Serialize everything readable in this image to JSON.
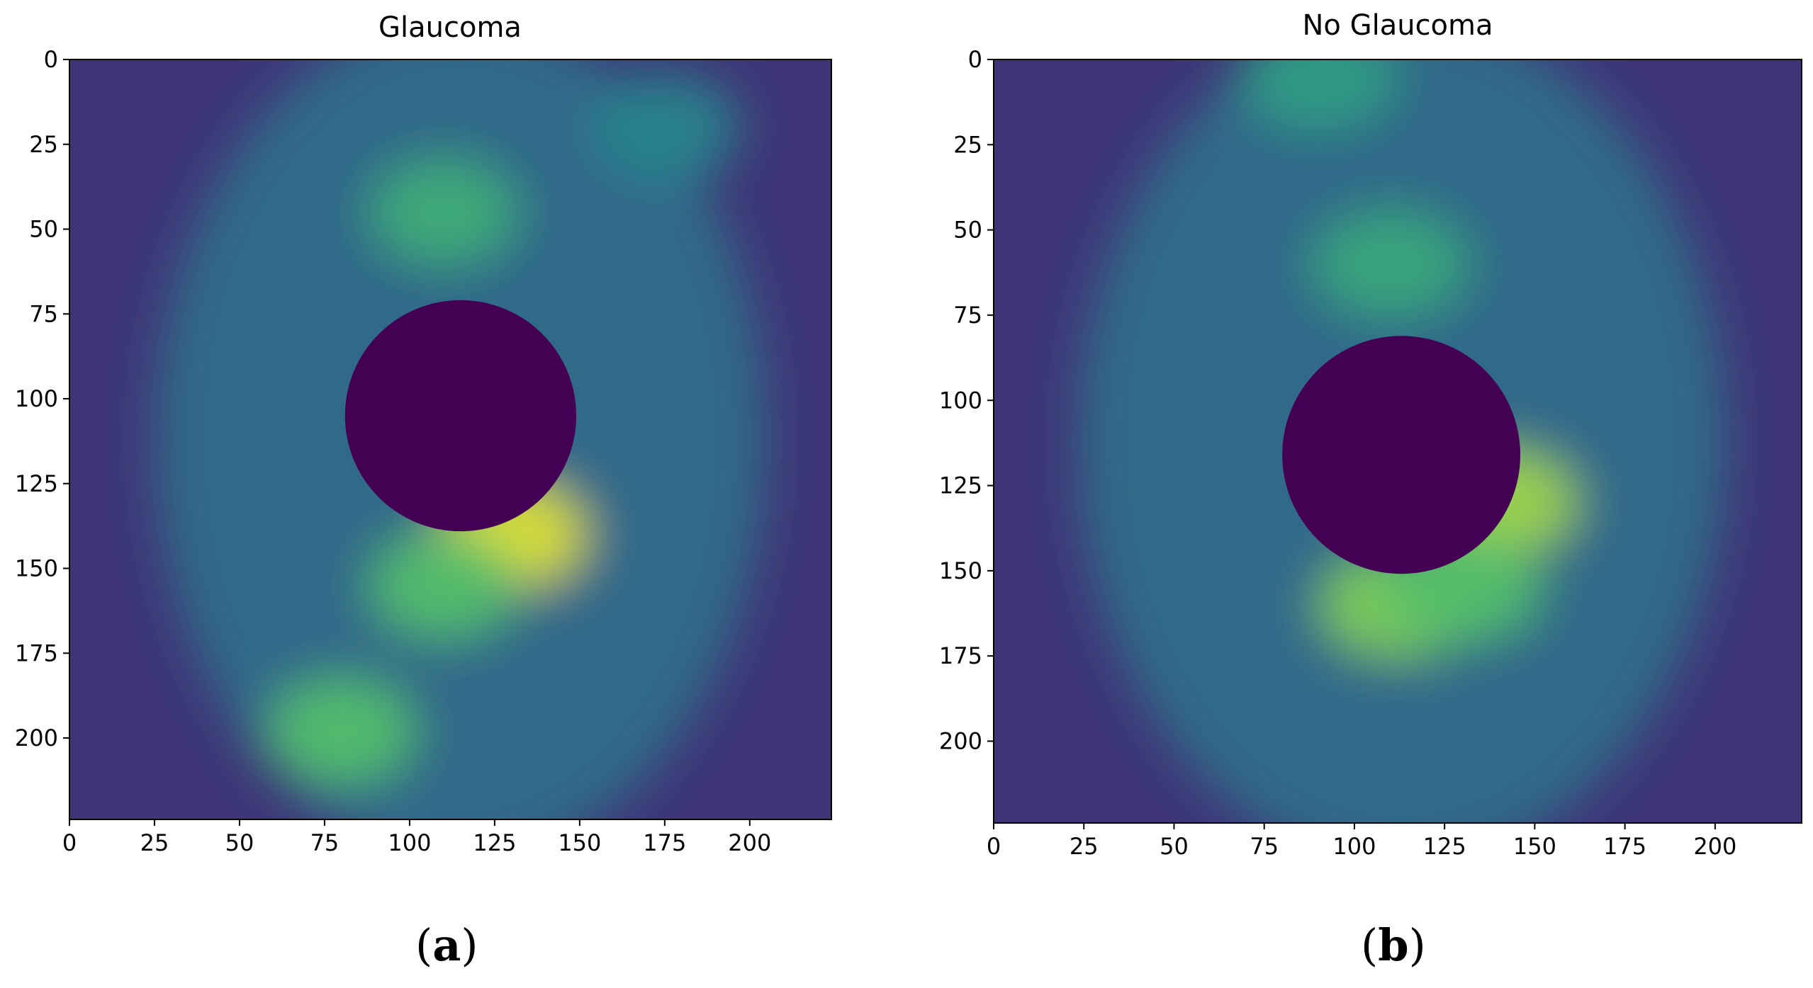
{
  "chart_data": [
    {
      "type": "heatmap",
      "title": "Glaucoma",
      "caption": "a",
      "xlabel": "",
      "ylabel": "",
      "xlim": [
        0,
        224
      ],
      "ylim": [
        224,
        0
      ],
      "x_ticks": [
        0,
        25,
        50,
        75,
        100,
        125,
        150,
        175,
        200
      ],
      "y_ticks": [
        0,
        25,
        50,
        75,
        100,
        125,
        150,
        175,
        200
      ],
      "colormap": "viridis",
      "colors": {
        "low": "#440154",
        "mid": "#21918c",
        "high": "#fde725"
      },
      "masked_disc": {
        "center": [
          115,
          105
        ],
        "radius": 34
      },
      "hotspots": [
        {
          "x": 110,
          "y": 45,
          "intensity": 0.62
        },
        {
          "x": 130,
          "y": 140,
          "intensity": 0.95
        },
        {
          "x": 110,
          "y": 155,
          "intensity": 0.7
        },
        {
          "x": 80,
          "y": 198,
          "intensity": 0.7
        },
        {
          "x": 175,
          "y": 20,
          "intensity": 0.45
        }
      ]
    },
    {
      "type": "heatmap",
      "title": "No Glaucoma",
      "caption": "b",
      "xlabel": "",
      "ylabel": "",
      "xlim": [
        0,
        224
      ],
      "ylim": [
        224,
        0
      ],
      "x_ticks": [
        0,
        25,
        50,
        75,
        100,
        125,
        150,
        175,
        200
      ],
      "y_ticks": [
        0,
        25,
        50,
        75,
        100,
        125,
        150,
        175,
        200
      ],
      "colormap": "viridis",
      "colors": {
        "low": "#440154",
        "mid": "#21918c",
        "high": "#fde725"
      },
      "masked_disc": {
        "center": [
          113,
          116
        ],
        "radius": 33
      },
      "hotspots": [
        {
          "x": 110,
          "y": 60,
          "intensity": 0.6
        },
        {
          "x": 140,
          "y": 130,
          "intensity": 0.85
        },
        {
          "x": 112,
          "y": 160,
          "intensity": 0.8
        },
        {
          "x": 130,
          "y": 155,
          "intensity": 0.7
        },
        {
          "x": 90,
          "y": 5,
          "intensity": 0.55
        }
      ]
    }
  ]
}
